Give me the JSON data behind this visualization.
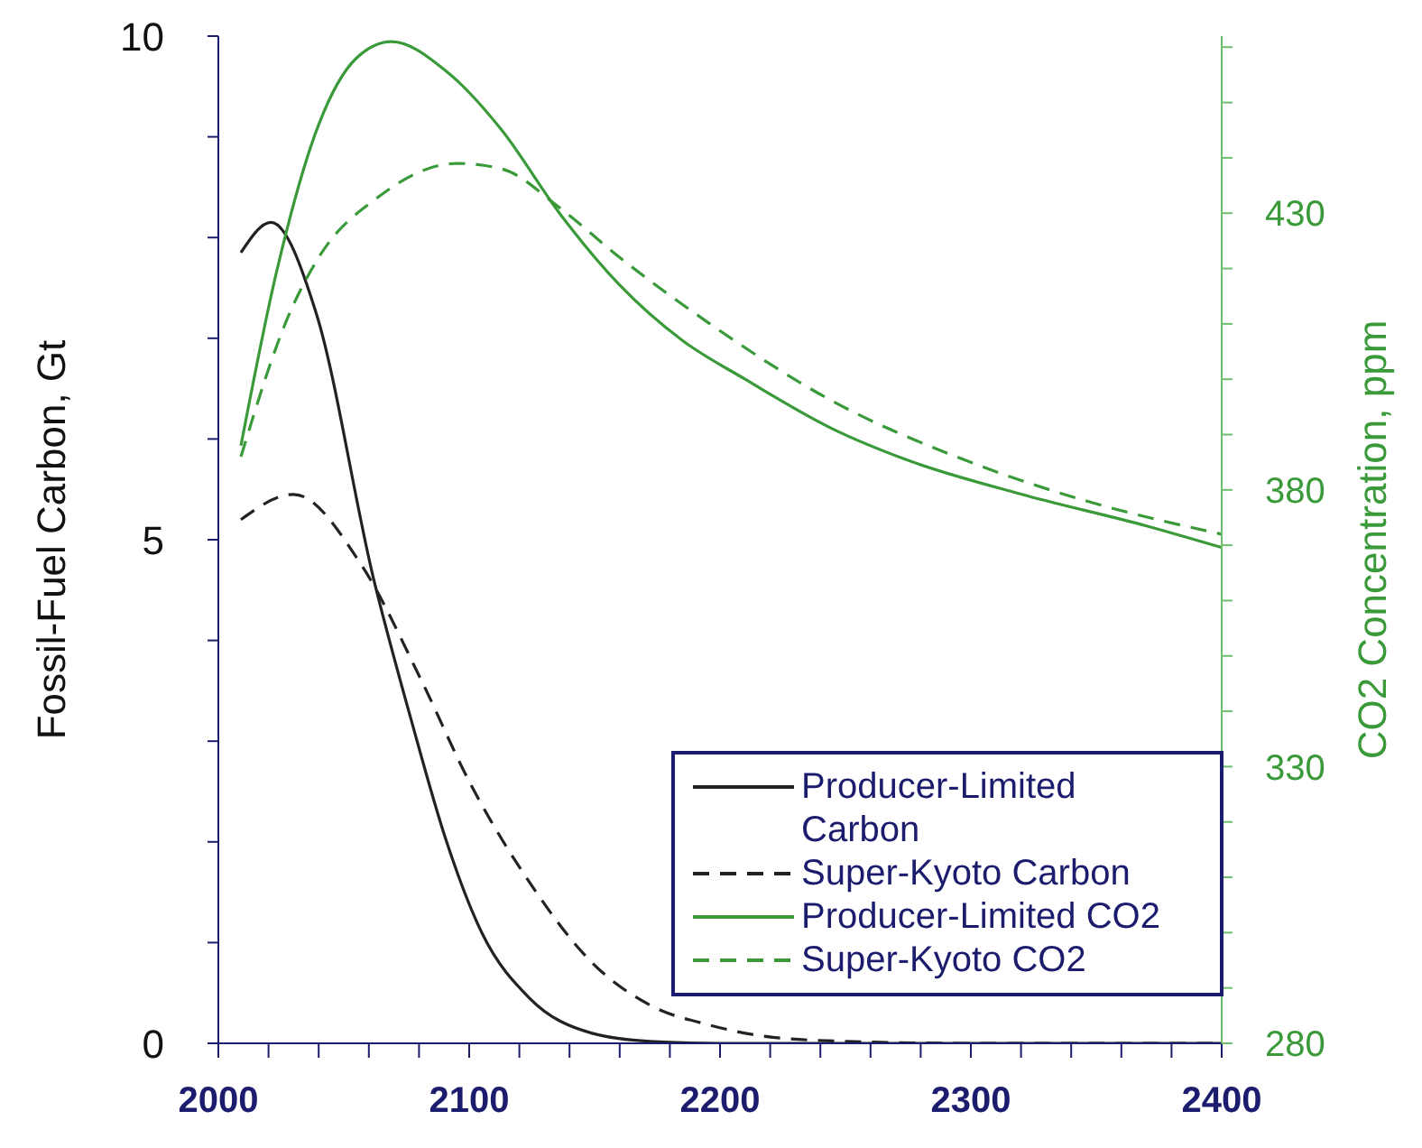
{
  "chart_data": {
    "type": "line",
    "xlabel": null,
    "ylabel": "Fossil-Fuel Carbon, Gt",
    "y2label": "CO2 Concentration, ppm",
    "xlim": [
      2000,
      2400
    ],
    "xticks": [
      2000,
      {
        "value": 2020,
        "label": null
      },
      {
        "value": 2040,
        "label": null
      },
      {
        "value": 2060,
        "label": null
      },
      {
        "value": 2080,
        "label": null
      },
      2100,
      {
        "value": 2120,
        "label": null
      },
      {
        "value": 2140,
        "label": null
      },
      {
        "value": 2160,
        "label": null
      },
      {
        "value": 2180,
        "label": null
      },
      2200,
      {
        "value": 2220,
        "label": null
      },
      {
        "value": 2240,
        "label": null
      },
      {
        "value": 2260,
        "label": null
      },
      {
        "value": 2280,
        "label": null
      },
      2300,
      {
        "value": 2320,
        "label": null
      },
      {
        "value": 2340,
        "label": null
      },
      {
        "value": 2360,
        "label": null
      },
      {
        "value": 2380,
        "label": null
      },
      2400
    ],
    "ylim": [
      0,
      10
    ],
    "yticks": [
      0,
      {
        "value": 1,
        "label": null
      },
      {
        "value": 2,
        "label": null
      },
      {
        "value": 3,
        "label": null
      },
      {
        "value": 4,
        "label": null
      },
      5,
      {
        "value": 6,
        "label": null
      },
      {
        "value": 7,
        "label": null
      },
      {
        "value": 8,
        "label": null
      },
      {
        "value": 9,
        "label": null
      },
      10
    ],
    "y2lim": [
      280,
      462
    ],
    "y2ticks": [
      280,
      {
        "value": 290,
        "label": null
      },
      {
        "value": 300,
        "label": null
      },
      {
        "value": 310,
        "label": null
      },
      {
        "value": 320,
        "label": null
      },
      330,
      {
        "value": 340,
        "label": null
      },
      {
        "value": 350,
        "label": null
      },
      {
        "value": 360,
        "label": null
      },
      {
        "value": 370,
        "label": null
      },
      380,
      {
        "value": 390,
        "label": null
      },
      {
        "value": 400,
        "label": null
      },
      {
        "value": 410,
        "label": null
      },
      {
        "value": 420,
        "label": null
      },
      430,
      {
        "value": 440,
        "label": null
      },
      {
        "value": 450,
        "label": null
      },
      {
        "value": 460,
        "label": null
      }
    ],
    "grid": false,
    "legend": "bottom right",
    "marker": "none",
    "series": [
      {
        "name": "Producer-Limited Carbon",
        "color": "#222222",
        "line_style": "solid",
        "x": [
          2009,
          2021,
          2039,
          2062,
          2077,
          2091,
          2105,
          2124,
          2149,
          2172,
          2200,
          2250,
          2300,
          2350,
          2400
        ],
        "values": [
          7.85,
          8.15,
          7.25,
          4.6,
          3.2,
          2.0,
          1.1,
          0.45,
          0.1,
          0.02,
          0,
          0,
          0,
          0,
          0
        ]
      },
      {
        "name": "Super-Kyoto Carbon",
        "color": "#222222",
        "line_style": "dashed",
        "x": [
          2009,
          2030,
          2057,
          2081,
          2100,
          2124,
          2149,
          2172,
          2196,
          2221,
          2250,
          2300,
          2350,
          2400
        ],
        "values": [
          5.2,
          5.45,
          4.75,
          3.6,
          2.6,
          1.6,
          0.8,
          0.38,
          0.18,
          0.06,
          0.02,
          0,
          0,
          0
        ]
      },
      {
        "name": "Producer-Limited CO2",
        "color": "#3a9a3a",
        "line_style": "solid",
        "axis": "y2",
        "x": [
          2009,
          2023,
          2040,
          2055,
          2069,
          2091,
          2113,
          2136,
          2160,
          2185,
          2210,
          2245,
          2274,
          2322,
          2370,
          2400
        ],
        "values": [
          388,
          419,
          446,
          458,
          461,
          455.6,
          445,
          430,
          417,
          407,
          400,
          391,
          385.5,
          379,
          373.5,
          369.6
        ]
      },
      {
        "name": "Super-Kyoto CO2",
        "color": "#3a9a3a",
        "line_style": "dashed",
        "axis": "y2",
        "x": [
          2009,
          2028,
          2040,
          2064,
          2095,
          2113,
          2136,
          2160,
          2196,
          2245,
          2297,
          2346,
          2400
        ],
        "values": [
          386,
          411.5,
          422,
          433,
          439,
          438,
          431,
          422,
          410,
          396,
          385.5,
          378,
          372
        ]
      }
    ]
  }
}
